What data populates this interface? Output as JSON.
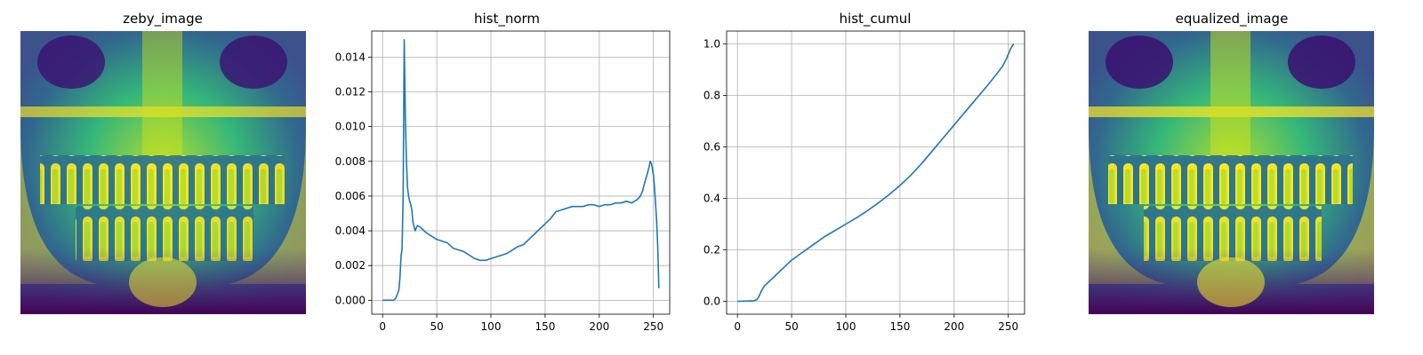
{
  "panels": {
    "image1": {
      "title": "zeby_image",
      "colormap": "viridis"
    },
    "image2": {
      "title": "equalized_image",
      "colormap": "viridis"
    }
  },
  "colors": {
    "series": "#1f77b4",
    "grid": "#b0b0b0",
    "viridis_dark": "#440154",
    "viridis_mid": "#21918c",
    "viridis_bright": "#fde725"
  },
  "chart_data": [
    {
      "type": "line",
      "title": "hist_norm",
      "xlabel": "",
      "ylabel": "",
      "xlim": [
        -10,
        265
      ],
      "ylim": [
        -0.0008,
        0.0155
      ],
      "xticks": [
        0,
        50,
        100,
        150,
        200,
        250
      ],
      "yticks": [
        0.0,
        0.002,
        0.004,
        0.006,
        0.008,
        0.01,
        0.012,
        0.014
      ],
      "ytick_labels": [
        "0.000",
        "0.002",
        "0.004",
        "0.006",
        "0.008",
        "0.010",
        "0.012",
        "0.014"
      ],
      "grid": true,
      "series": [
        {
          "x": [
            0,
            10,
            12,
            14,
            15,
            16,
            17,
            18,
            19,
            20,
            21,
            22,
            23,
            24,
            25,
            26,
            27,
            28,
            30,
            32,
            35,
            40,
            45,
            50,
            55,
            60,
            65,
            70,
            75,
            80,
            85,
            90,
            95,
            100,
            105,
            110,
            115,
            120,
            125,
            130,
            135,
            140,
            145,
            150,
            155,
            160,
            165,
            170,
            175,
            180,
            185,
            190,
            195,
            200,
            205,
            210,
            215,
            220,
            225,
            230,
            235,
            238,
            240,
            242,
            244,
            246,
            247,
            248,
            249,
            250,
            251,
            252,
            253,
            254,
            255
          ],
          "y": [
            0.0,
            0.0,
            0.0001,
            0.0004,
            0.0006,
            0.0013,
            0.0025,
            0.003,
            0.006,
            0.015,
            0.0105,
            0.008,
            0.0065,
            0.006,
            0.0057,
            0.0055,
            0.0052,
            0.0045,
            0.004,
            0.0043,
            0.0042,
            0.0039,
            0.0037,
            0.0035,
            0.0034,
            0.0033,
            0.003,
            0.0029,
            0.0028,
            0.0026,
            0.0024,
            0.0023,
            0.0023,
            0.0024,
            0.0025,
            0.0026,
            0.0027,
            0.0029,
            0.0031,
            0.0032,
            0.0035,
            0.0038,
            0.0041,
            0.0044,
            0.0047,
            0.0051,
            0.0052,
            0.0053,
            0.0054,
            0.0054,
            0.0054,
            0.0055,
            0.0055,
            0.0054,
            0.0055,
            0.0055,
            0.0056,
            0.0056,
            0.0057,
            0.0056,
            0.0058,
            0.006,
            0.0063,
            0.0068,
            0.0072,
            0.0077,
            0.008,
            0.0079,
            0.0076,
            0.0072,
            0.0065,
            0.0055,
            0.0045,
            0.003,
            0.0007
          ]
        }
      ]
    },
    {
      "type": "line",
      "title": "hist_cumul",
      "xlabel": "",
      "ylabel": "",
      "xlim": [
        -10,
        265
      ],
      "ylim": [
        -0.05,
        1.05
      ],
      "xticks": [
        0,
        50,
        100,
        150,
        200,
        250
      ],
      "yticks": [
        0.0,
        0.2,
        0.4,
        0.6,
        0.8,
        1.0
      ],
      "ytick_labels": [
        "0.0",
        "0.2",
        "0.4",
        "0.6",
        "0.8",
        "1.0"
      ],
      "grid": true,
      "series": [
        {
          "x": [
            0,
            15,
            18,
            20,
            22,
            25,
            30,
            35,
            40,
            45,
            50,
            60,
            70,
            80,
            90,
            100,
            110,
            120,
            130,
            140,
            150,
            160,
            170,
            180,
            190,
            200,
            210,
            220,
            230,
            240,
            245,
            248,
            250,
            252,
            254,
            255
          ],
          "y": [
            0.0,
            0.002,
            0.007,
            0.02,
            0.04,
            0.06,
            0.08,
            0.1,
            0.12,
            0.14,
            0.16,
            0.19,
            0.22,
            0.25,
            0.275,
            0.3,
            0.325,
            0.352,
            0.382,
            0.415,
            0.45,
            0.49,
            0.535,
            0.585,
            0.635,
            0.685,
            0.735,
            0.785,
            0.835,
            0.887,
            0.915,
            0.94,
            0.96,
            0.98,
            0.995,
            1.0
          ]
        }
      ]
    }
  ]
}
